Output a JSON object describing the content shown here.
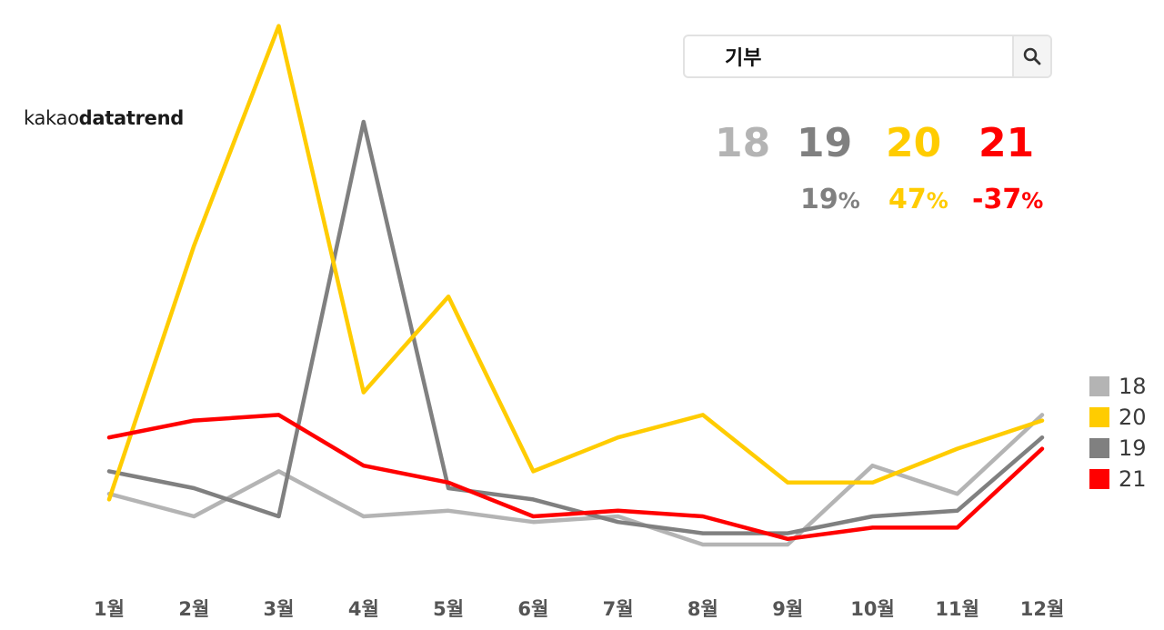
{
  "brand": {
    "logo_light": "kakao",
    "logo_bold": "datatrend"
  },
  "search": {
    "value": "기부",
    "icon": "search-icon"
  },
  "years": [
    {
      "label": "18",
      "color": "#b4b4b4"
    },
    {
      "label": "19",
      "color": "#808080"
    },
    {
      "label": "20",
      "color": "#ffcc00"
    },
    {
      "label": "21",
      "color": "#ff0000"
    }
  ],
  "changes": [
    {
      "value": "19",
      "unit": "%",
      "color": "#808080"
    },
    {
      "value": "47",
      "unit": "%",
      "color": "#ffcc00"
    },
    {
      "value": "-37",
      "unit": "%",
      "color": "#ff0000"
    }
  ],
  "legend": [
    {
      "label": "18",
      "color": "#b4b4b4"
    },
    {
      "label": "20",
      "color": "#ffcc00"
    },
    {
      "label": "19",
      "color": "#808080"
    },
    {
      "label": "21",
      "color": "#ff0000"
    }
  ],
  "chart_data": {
    "type": "line",
    "x": [
      "1월",
      "2월",
      "3월",
      "4월",
      "5월",
      "6월",
      "7월",
      "8월",
      "9월",
      "10월",
      "11월",
      "12월"
    ],
    "ylim": [
      0,
      100
    ],
    "grid": false,
    "legend_position": "bottom-right",
    "series": [
      {
        "name": "18",
        "color": "#b4b4b4",
        "values": [
          14,
          10,
          18,
          10,
          11,
          9,
          10,
          5,
          5,
          19,
          14,
          28
        ]
      },
      {
        "name": "19",
        "color": "#808080",
        "values": [
          18,
          15,
          10,
          80,
          15,
          13,
          9,
          7,
          7,
          10,
          11,
          24
        ]
      },
      {
        "name": "20",
        "color": "#ffcc00",
        "values": [
          13,
          58,
          97,
          32,
          49,
          18,
          24,
          28,
          16,
          16,
          22,
          27
        ]
      },
      {
        "name": "21",
        "color": "#ff0000",
        "values": [
          24,
          27,
          28,
          19,
          16,
          10,
          11,
          10,
          6,
          8,
          8,
          22
        ]
      }
    ]
  }
}
